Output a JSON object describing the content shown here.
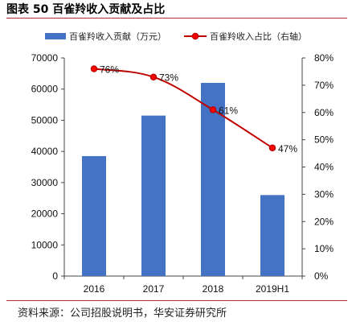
{
  "figure_title": "图表 50  百雀羚收入贡献及占比",
  "source": "资料来源：公司招股说明书，华安证券研究所",
  "chart_data": {
    "type": "bar",
    "categories": [
      "2016",
      "2017",
      "2018",
      "2019H1"
    ],
    "series": [
      {
        "name": "百雀羚收入贡献（万元）",
        "type": "bar",
        "axis": "left",
        "color": "#4472c4",
        "values": [
          38500,
          51500,
          62000,
          26000
        ]
      },
      {
        "name": "百雀羚收入占比（右轴）",
        "type": "line",
        "axis": "right",
        "color": "#c00000",
        "values": [
          76,
          73,
          61,
          47
        ],
        "labels": [
          "76%",
          "73%",
          "61%",
          "47%"
        ]
      }
    ],
    "y_left": {
      "min": 0,
      "max": 70000,
      "ticks": [
        "0",
        "10000",
        "20000",
        "30000",
        "40000",
        "50000",
        "60000",
        "70000"
      ]
    },
    "y_right": {
      "min": 0,
      "max": 80,
      "ticks": [
        "0%",
        "10%",
        "20%",
        "30%",
        "40%",
        "50%",
        "60%",
        "70%",
        "80%"
      ]
    },
    "legend_position": "top",
    "grid": false
  }
}
